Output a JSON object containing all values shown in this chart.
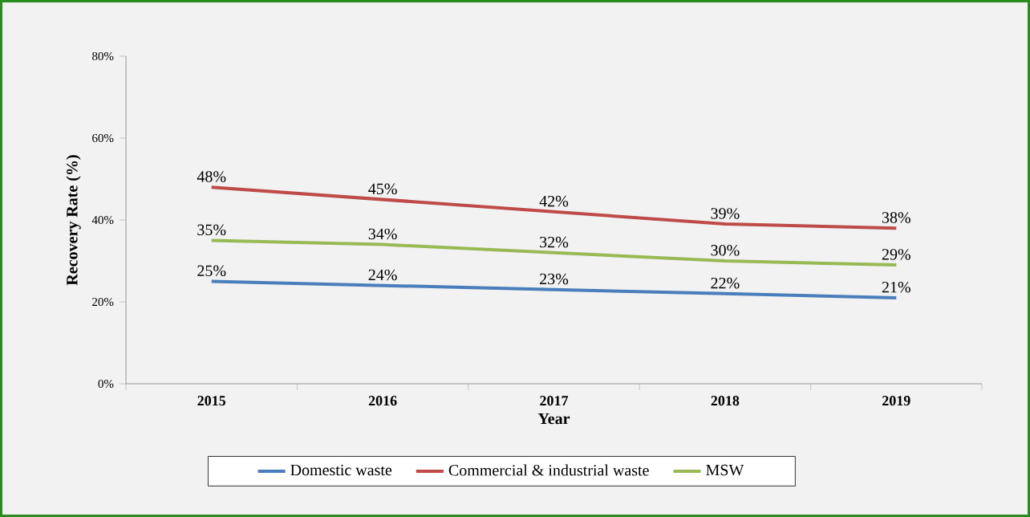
{
  "chart_data": {
    "type": "line",
    "xlabel": "Year",
    "ylabel": "Recovery Rate (%)",
    "categories": [
      "2015",
      "2016",
      "2017",
      "2018",
      "2019"
    ],
    "series": [
      {
        "name": "Domestic waste",
        "color": "#4a7ebb",
        "values": [
          25,
          24,
          23,
          22,
          21
        ],
        "value_labels": [
          "25%",
          "24%",
          "23%",
          "22%",
          "21%"
        ]
      },
      {
        "name": "Commercial & industrial waste",
        "color": "#be4b48",
        "values": [
          48,
          45,
          42,
          39,
          38
        ],
        "value_labels": [
          "48%",
          "45%",
          "42%",
          "39%",
          "38%"
        ]
      },
      {
        "name": "MSW",
        "color": "#98b954",
        "values": [
          35,
          34,
          32,
          30,
          29
        ],
        "value_labels": [
          "35%",
          "34%",
          "32%",
          "30%",
          "29%"
        ]
      }
    ],
    "ylim": [
      0,
      80
    ],
    "yticks": [
      {
        "value": 0,
        "label": "0%"
      },
      {
        "value": 20,
        "label": "20%"
      },
      {
        "value": 40,
        "label": "40%"
      },
      {
        "value": 60,
        "label": "60%"
      },
      {
        "value": 80,
        "label": "80%"
      }
    ],
    "legend": "bottom"
  }
}
